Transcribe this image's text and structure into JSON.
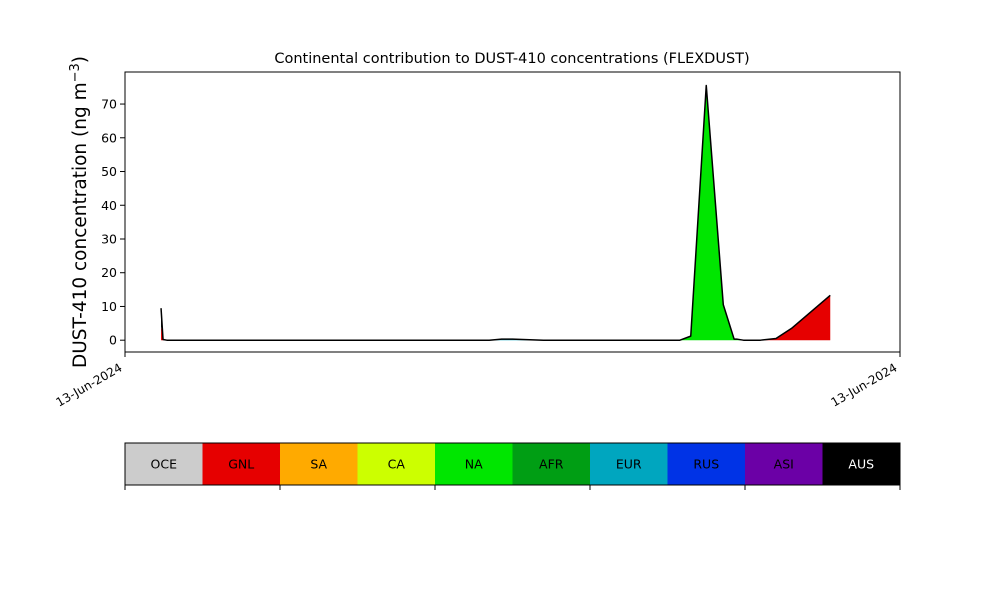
{
  "chart_data": {
    "type": "area",
    "title": "Continental contribution to DUST-410 concentrations (FLEXDUST)",
    "ylabel_main": "DUST-410 concentration (ng m",
    "ylabel_sup": "−3",
    "ylabel_close": ")",
    "xlabel": "",
    "x_tick_labels": [
      "13-Jun-2024",
      "13-Jun-2024"
    ],
    "ylim": [
      -3.5,
      79.5
    ],
    "y_ticks": [
      0,
      10,
      20,
      30,
      40,
      50,
      60,
      70
    ],
    "grid": false,
    "x": [
      0.0465,
      0.0491,
      0.054,
      0.09,
      0.2,
      0.3,
      0.4,
      0.47,
      0.486,
      0.5,
      0.54,
      0.58,
      0.64,
      0.658,
      0.676,
      0.696,
      0.716,
      0.73,
      0.75,
      0.772,
      0.786,
      0.79,
      0.798,
      0.82,
      0.84,
      0.86,
      0.91
    ],
    "series": [
      {
        "name": "GNL",
        "values": [
          4.0,
          0.2,
          0.0,
          0.0,
          0.0,
          0.0,
          0.0,
          0.0,
          0.0,
          0.0,
          0.0,
          0.0,
          0.0,
          0.0,
          0.0,
          0.0,
          0.0,
          0.0,
          0.0,
          0.0,
          0.0,
          0.0,
          0.0,
          0.0,
          0.5,
          3.5,
          13.3
        ]
      },
      {
        "name": "NA",
        "values": [
          0.0,
          0.0,
          0.0,
          0.0,
          0.0,
          0.0,
          0.0,
          0.0,
          0.0,
          0.0,
          0.0,
          0.0,
          0.0,
          0.0,
          0.0,
          0.0,
          0.0,
          1.2,
          75.5,
          10.5,
          0.3,
          0.3,
          0.0,
          0.0,
          0.0,
          0.0,
          0.0
        ]
      },
      {
        "name": "EUR",
        "values": [
          0.0,
          0.0,
          0.0,
          0.0,
          0.0,
          0.0,
          0.0,
          0.0,
          0.3,
          0.3,
          0.0,
          0.0,
          0.0,
          0.0,
          0.0,
          0.0,
          0.0,
          0.0,
          0.0,
          0.0,
          0.0,
          0.0,
          0.0,
          0.0,
          0.0,
          0.0,
          0.0
        ]
      },
      {
        "name": "AUS",
        "values": [
          5.5,
          0.0,
          0.0,
          0.0,
          0.0,
          0.0,
          0.0,
          0.0,
          0.0,
          0.0,
          0.0,
          0.0,
          0.0,
          0.0,
          0.0,
          0.0,
          0.0,
          0.0,
          0.0,
          0.0,
          0.0,
          0.0,
          0.0,
          0.0,
          0.0,
          0.0,
          0.0
        ]
      }
    ],
    "legend": {
      "placement": "bottom",
      "items": [
        {
          "label": "OCE",
          "color": "#cccccc",
          "text_color": "#000000"
        },
        {
          "label": "GNL",
          "color": "#e60000",
          "text_color": "#000000"
        },
        {
          "label": "SA",
          "color": "#ffaa00",
          "text_color": "#000000"
        },
        {
          "label": "CA",
          "color": "#ccff00",
          "text_color": "#000000"
        },
        {
          "label": "NA",
          "color": "#00e600",
          "text_color": "#000000"
        },
        {
          "label": "AFR",
          "color": "#009e14",
          "text_color": "#000000"
        },
        {
          "label": "EUR",
          "color": "#00a6bf",
          "text_color": "#000000"
        },
        {
          "label": "RUS",
          "color": "#0033e6",
          "text_color": "#000000"
        },
        {
          "label": "ASI",
          "color": "#6b00a6",
          "text_color": "#000000"
        },
        {
          "label": "AUS",
          "color": "#000000",
          "text_color": "#ffffff"
        }
      ]
    }
  }
}
